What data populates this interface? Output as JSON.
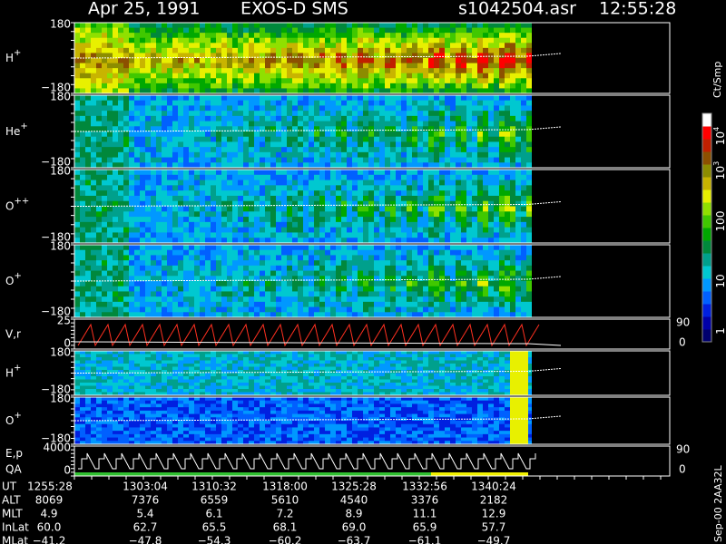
{
  "header": {
    "date": "Apr 25, 1991",
    "instrument": "EXOS-D SMS",
    "file": "s1042504.asr",
    "time": "12:55:28"
  },
  "panels": [
    {
      "label": "H",
      "sup": "+",
      "ticks": [
        "180",
        "−180"
      ]
    },
    {
      "label": "He",
      "sup": "+",
      "ticks": [
        "180",
        "−180"
      ]
    },
    {
      "label": "O",
      "sup": "++",
      "ticks": [
        "180",
        "−180"
      ]
    },
    {
      "label": "O",
      "sup": "+",
      "ticks": [
        "180",
        "−180"
      ]
    },
    {
      "label": "V,r",
      "ticks": [
        "25",
        "0"
      ],
      "right_ticks": [
        "90",
        "0"
      ]
    },
    {
      "label": "H",
      "sup": "+",
      "ticks": [
        "180",
        "−180"
      ]
    },
    {
      "label": "O",
      "sup": "+",
      "ticks": [
        "180",
        "−180"
      ]
    },
    {
      "label": "E,p",
      "label2": "QA",
      "ticks": [
        "4000",
        "0"
      ],
      "right_ticks": [
        "90",
        "0"
      ]
    }
  ],
  "colorbar": {
    "unit": "Ct/Smp",
    "labels": [
      {
        "text": "10",
        "sup": "4"
      },
      {
        "text": "10",
        "sup": "3"
      },
      {
        "text": "100"
      },
      {
        "text": "10"
      },
      {
        "text": "1"
      }
    ]
  },
  "table": {
    "rows": [
      [
        "UT",
        "1255:28",
        "1303:04",
        "1310:32",
        "1318:00",
        "1325:28",
        "1332:56",
        "1340:24"
      ],
      [
        "ALT",
        "8069",
        "7376",
        "6559",
        "5610",
        "4540",
        "3376",
        "2182"
      ],
      [
        "MLT",
        "4.9",
        "5.4",
        "6.1",
        "7.2",
        "8.9",
        "11.1",
        "12.9"
      ],
      [
        "InLat",
        "60.0",
        "62.7",
        "65.5",
        "68.1",
        "69.0",
        "65.9",
        "57.7"
      ],
      [
        "MLat",
        "−41.2",
        "−47.8",
        "−54.3",
        "−60.2",
        "−63.7",
        "−61.1",
        "−49.7"
      ]
    ]
  },
  "footer": "Sep-00 2AA32L"
}
